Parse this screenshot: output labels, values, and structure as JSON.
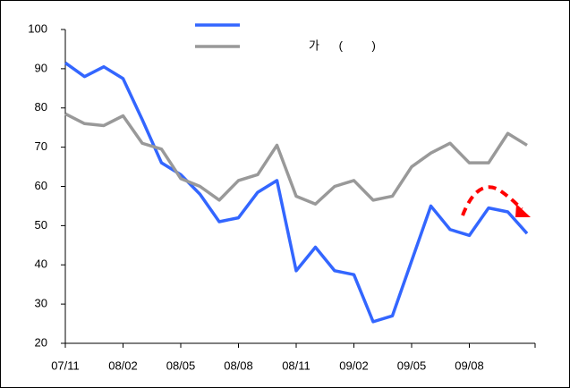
{
  "chart_data": {
    "type": "line",
    "categories": [
      "07/11",
      null,
      null,
      "08/02",
      null,
      null,
      "08/05",
      null,
      null,
      "08/08",
      null,
      null,
      "08/11",
      null,
      null,
      "09/02",
      null,
      null,
      "09/05",
      null,
      null,
      "09/08",
      null,
      null,
      null
    ],
    "series": [
      {
        "color": "#3366ff",
        "values": [
          91.5,
          88,
          90.5,
          87.5,
          77,
          66,
          63,
          58,
          51,
          52,
          58.5,
          61.5,
          38.5,
          44.5,
          38.5,
          37.5,
          25.5,
          27,
          41,
          55,
          49,
          47.5,
          54.5,
          53.5,
          48
        ]
      },
      {
        "name": "가      (         )",
        "color": "#999999",
        "values": [
          78.5,
          76,
          75.5,
          78,
          71,
          69.5,
          62,
          60,
          56.5,
          61.5,
          63,
          70.5,
          57.5,
          55.5,
          60,
          61.5,
          56.5,
          57.5,
          65,
          68.5,
          71,
          66,
          66,
          73.5,
          70.5
        ]
      }
    ],
    "ylim": [
      20,
      100
    ],
    "yticks": [
      20,
      30,
      40,
      50,
      60,
      70,
      80,
      90,
      100
    ]
  }
}
